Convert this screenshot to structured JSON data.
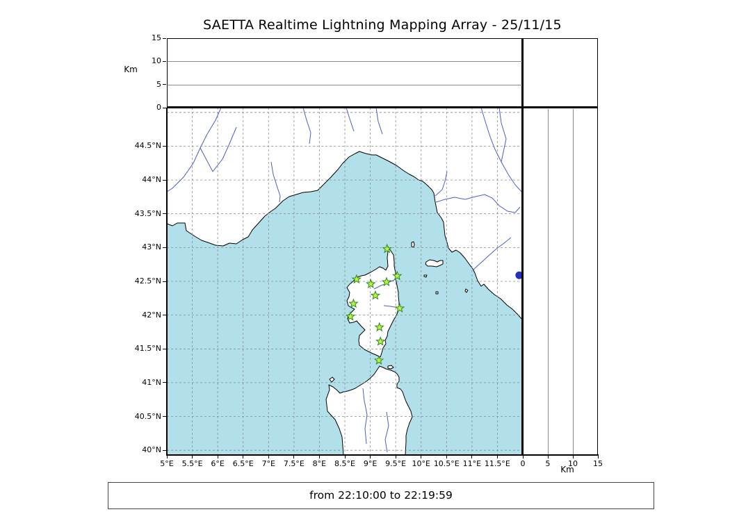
{
  "title": "SAETTA Realtime Lightning Mapping Array - 25/11/15",
  "status_text": "from 22:10:00 to 22:19:59",
  "axes": {
    "km_label": "Km",
    "alt_range_km": [
      0,
      15
    ],
    "alt_ticks": [
      {
        "v": 0,
        "label": "0"
      },
      {
        "v": 5,
        "label": "5"
      },
      {
        "v": 10,
        "label": "10"
      },
      {
        "v": 15,
        "label": "15"
      }
    ],
    "alt_grid": [
      5,
      10
    ],
    "lon_range": [
      5,
      12
    ],
    "lat_range": [
      39.93,
      45.07
    ],
    "lon_ticks": [
      {
        "v": 5,
        "label": "5°E"
      },
      {
        "v": 5.5,
        "label": "5.5°E"
      },
      {
        "v": 6,
        "label": "6°E"
      },
      {
        "v": 6.5,
        "label": "6.5°E"
      },
      {
        "v": 7,
        "label": "7°E"
      },
      {
        "v": 7.5,
        "label": "7.5°E"
      },
      {
        "v": 8,
        "label": "8°E"
      },
      {
        "v": 8.5,
        "label": "8.5°E"
      },
      {
        "v": 9,
        "label": "9°E"
      },
      {
        "v": 9.5,
        "label": "9.5°E"
      },
      {
        "v": 10,
        "label": "10°E"
      },
      {
        "v": 10.5,
        "label": "10.5°E"
      },
      {
        "v": 11,
        "label": "11°E"
      },
      {
        "v": 11.5,
        "label": "11.5°E"
      }
    ],
    "lat_ticks": [
      {
        "v": 40,
        "label": "40°N"
      },
      {
        "v": 40.5,
        "label": "40.5°N"
      },
      {
        "v": 41,
        "label": "41°N"
      },
      {
        "v": 41.5,
        "label": "41.5°N"
      },
      {
        "v": 42,
        "label": "42°N"
      },
      {
        "v": 42.5,
        "label": "42.5°N"
      },
      {
        "v": 43,
        "label": "43°N"
      },
      {
        "v": 43.5,
        "label": "43.5°N"
      },
      {
        "v": 44,
        "label": "44°N"
      },
      {
        "v": 44.5,
        "label": "44.5°N"
      }
    ]
  },
  "map": {
    "sea_color": "#b2e0ea",
    "land_color": "#ffffff",
    "river_color": "#4a5fc8",
    "lake_color": "#2230c0",
    "lake": {
      "lon": 11.93,
      "lat": 42.59
    },
    "station_style": {
      "fill": "#bdf23d",
      "stroke": "#2d8a28"
    }
  },
  "chart_data": {
    "type": "scatter",
    "title": "SAETTA Realtime Lightning Mapping Array - 25/11/15",
    "time_range": "from 22:10:00 to 22:19:59",
    "grid": true,
    "panels": [
      {
        "name": "altitude_vs_longitude",
        "ylabel": "Km",
        "ylim": [
          0,
          15
        ],
        "yticks": [
          0,
          5,
          10,
          15
        ],
        "xlim": [
          5,
          12
        ],
        "points": []
      },
      {
        "name": "plan_view_map",
        "xlim": [
          5,
          12
        ],
        "ylim": [
          39.93,
          45.07
        ],
        "xticks": [
          "5°E",
          "5.5°E",
          "6°E",
          "6.5°E",
          "7°E",
          "7.5°E",
          "8°E",
          "8.5°E",
          "9°E",
          "9.5°E",
          "10°E",
          "10.5°E",
          "11°E",
          "11.5°E"
        ],
        "yticks": [
          "40°N",
          "40.5°N",
          "41°N",
          "41.5°N",
          "42°N",
          "42.5°N",
          "43°N",
          "43.5°N",
          "44°N",
          "44.5°N"
        ],
        "series": [
          {
            "name": "lma_stations",
            "marker": "star",
            "color": "#bdf23d",
            "points": [
              [
                9.33,
                42.98
              ],
              [
                8.73,
                42.53
              ],
              [
                9.01,
                42.46
              ],
              [
                9.32,
                42.49
              ],
              [
                9.53,
                42.58
              ],
              [
                9.1,
                42.29
              ],
              [
                8.67,
                42.17
              ],
              [
                9.58,
                42.1
              ],
              [
                8.61,
                41.98
              ],
              [
                9.18,
                41.82
              ],
              [
                9.2,
                41.61
              ],
              [
                9.17,
                41.33
              ]
            ]
          }
        ]
      },
      {
        "name": "altitude_vs_latitude",
        "xlabel": "Km",
        "xlim": [
          0,
          15
        ],
        "xticks": [
          0,
          5,
          10,
          15
        ],
        "ylim": [
          39.93,
          45.07
        ],
        "points": []
      }
    ]
  }
}
